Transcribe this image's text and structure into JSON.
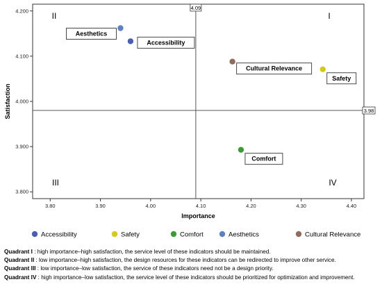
{
  "chart_data": {
    "type": "scatter",
    "xlabel": "Importance",
    "ylabel": "Satisfaction",
    "xlim": [
      3.765,
      4.425
    ],
    "ylim": [
      3.785,
      4.215
    ],
    "xticks": [
      "3.80",
      "3.90",
      "4.00",
      "4.10",
      "4.20",
      "4.30",
      "4.40"
    ],
    "yticks": [
      "3.800",
      "3.900",
      "4.000",
      "4.100",
      "4.200"
    ],
    "grid": false,
    "legend_position": "bottom",
    "reference_lines": {
      "x": 4.09,
      "y": 3.98,
      "x_label": "4.09",
      "y_label": "3.98"
    },
    "quadrant_labels": {
      "I": "I",
      "II": "II",
      "III": "III",
      "IV": "IV"
    },
    "series": [
      {
        "name": "Accessibility",
        "x": 3.96,
        "y": 4.133,
        "color": "#4b5fb0"
      },
      {
        "name": "Safety",
        "x": 4.343,
        "y": 4.071,
        "color": "#d7c81f"
      },
      {
        "name": "Comfort",
        "x": 4.18,
        "y": 3.893,
        "color": "#3d9b35"
      },
      {
        "name": "Aesthetics",
        "x": 3.94,
        "y": 4.162,
        "color": "#5d82bf"
      },
      {
        "name": "Cultural Relevance",
        "x": 4.163,
        "y": 4.088,
        "color": "#8e6d5f"
      }
    ]
  },
  "notes": [
    {
      "label": "Quadrant I",
      "text": " : high importance–high satisfaction, the service level of these indicators should be maintained."
    },
    {
      "label": "Quadrant II",
      "text": " : low importance–high satisfaction, the design resources for these indicators can be redirected to improve other service."
    },
    {
      "label": "Quadrant III",
      "text": " : low importance–low satisfaction, the service of these indicators need not be a design priority."
    },
    {
      "label": "Quadrant IV",
      "text": " : high importance–low satisfaction, the service level of these indicators should be prioritized for optimization and improvement."
    }
  ]
}
